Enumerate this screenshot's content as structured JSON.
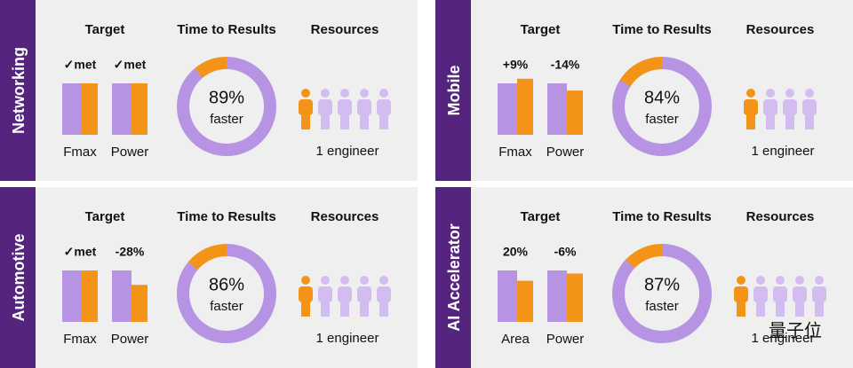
{
  "panels": [
    {
      "name": "Networking",
      "target": {
        "heading": "Target",
        "bars": [
          {
            "label": "Fmax",
            "note": "✓met",
            "baseline": 100,
            "result": 100
          },
          {
            "label": "Power",
            "note": "✓met",
            "baseline": 100,
            "result": 100
          }
        ]
      },
      "time": {
        "heading": "Time to Results",
        "value": 89,
        "label": "89%",
        "caption": "faster"
      },
      "resources": {
        "heading": "Resources",
        "engineers": 1,
        "people": 5,
        "caption": "1 engineer"
      }
    },
    {
      "name": "Mobile",
      "target": {
        "heading": "Target",
        "bars": [
          {
            "label": "Fmax",
            "note": "+9%",
            "baseline": 100,
            "result": 109
          },
          {
            "label": "Power",
            "note": "-14%",
            "baseline": 100,
            "result": 86
          }
        ]
      },
      "time": {
        "heading": "Time to Results",
        "value": 84,
        "label": "84%",
        "caption": "faster"
      },
      "resources": {
        "heading": "Resources",
        "engineers": 1,
        "people": 4,
        "caption": "1 engineer"
      }
    },
    {
      "name": "Automotive",
      "target": {
        "heading": "Target",
        "bars": [
          {
            "label": "Fmax",
            "note": "✓met",
            "baseline": 100,
            "result": 100
          },
          {
            "label": "Power",
            "note": "-28%",
            "baseline": 100,
            "result": 72
          }
        ]
      },
      "time": {
        "heading": "Time to Results",
        "value": 86,
        "label": "86%",
        "caption": "faster"
      },
      "resources": {
        "heading": "Resources",
        "engineers": 1,
        "people": 5,
        "caption": "1 engineer"
      }
    },
    {
      "name": "AI Accelerator",
      "target": {
        "heading": "Target",
        "bars": [
          {
            "label": "Area",
            "note": "20%",
            "baseline": 100,
            "result": 80
          },
          {
            "label": "Power",
            "note": "-6%",
            "baseline": 100,
            "result": 94
          }
        ]
      },
      "time": {
        "heading": "Time to Results",
        "value": 87,
        "label": "87%",
        "caption": "faster"
      },
      "resources": {
        "heading": "Resources",
        "engineers": 1,
        "people": 5,
        "caption": "1 engineer"
      }
    }
  ],
  "watermark": "量子位"
}
